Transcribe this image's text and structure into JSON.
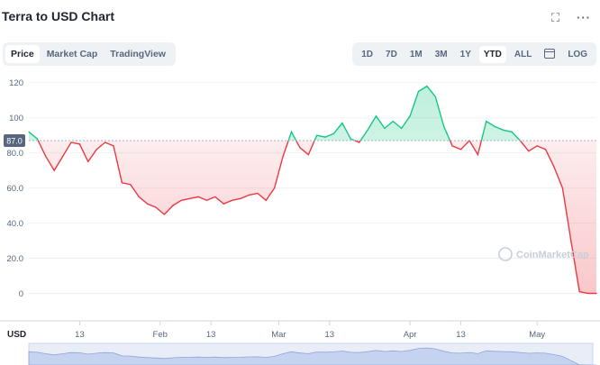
{
  "title": "Terra to USD Chart",
  "icons": {
    "expand": "expand-icon",
    "more": "more-icon",
    "calendar": "calendar-icon"
  },
  "tabs_left": [
    "Price",
    "Market Cap",
    "TradingView"
  ],
  "active_left": "Price",
  "tabs_right": [
    "1D",
    "7D",
    "1M",
    "3M",
    "1Y",
    "YTD",
    "ALL",
    "LOG"
  ],
  "active_right": "YTD",
  "watermark": "CoinMarketCap",
  "colors": {
    "up": "#16c784",
    "down": "#ea3943",
    "baseline": "#a6b0c3"
  },
  "chart_data": {
    "type": "area",
    "ylabel": "USD",
    "yticks": [
      "0",
      "20.0",
      "40.0",
      "60.0",
      "80.0",
      "100",
      "120"
    ],
    "ylim": [
      -10,
      125
    ],
    "baseline_value": "87.0",
    "baseline": 87.0,
    "xticks": [
      "13",
      "Feb",
      "13",
      "Mar",
      "13",
      "Apr",
      "13",
      "May"
    ],
    "xtick_dates": [
      "2022-01-13",
      "2022-02-01",
      "2022-02-13",
      "2022-03-01",
      "2022-03-13",
      "2022-04-01",
      "2022-04-13",
      "2022-05-01"
    ],
    "grid": true,
    "x": [
      "2022-01-01",
      "2022-01-03",
      "2022-01-05",
      "2022-01-07",
      "2022-01-09",
      "2022-01-11",
      "2022-01-13",
      "2022-01-15",
      "2022-01-17",
      "2022-01-19",
      "2022-01-21",
      "2022-01-23",
      "2022-01-25",
      "2022-01-27",
      "2022-01-29",
      "2022-01-31",
      "2022-02-02",
      "2022-02-04",
      "2022-02-06",
      "2022-02-08",
      "2022-02-10",
      "2022-02-12",
      "2022-02-14",
      "2022-02-16",
      "2022-02-18",
      "2022-02-20",
      "2022-02-22",
      "2022-02-24",
      "2022-02-26",
      "2022-02-28",
      "2022-03-02",
      "2022-03-04",
      "2022-03-06",
      "2022-03-08",
      "2022-03-10",
      "2022-03-12",
      "2022-03-14",
      "2022-03-16",
      "2022-03-18",
      "2022-03-20",
      "2022-03-22",
      "2022-03-24",
      "2022-03-26",
      "2022-03-28",
      "2022-03-30",
      "2022-04-01",
      "2022-04-03",
      "2022-04-05",
      "2022-04-07",
      "2022-04-09",
      "2022-04-11",
      "2022-04-13",
      "2022-04-15",
      "2022-04-17",
      "2022-04-19",
      "2022-04-21",
      "2022-04-23",
      "2022-04-25",
      "2022-04-27",
      "2022-04-29",
      "2022-05-01",
      "2022-05-03",
      "2022-05-05",
      "2022-05-07",
      "2022-05-09",
      "2022-05-11",
      "2022-05-13",
      "2022-05-15"
    ],
    "y": [
      92,
      88,
      78,
      70,
      78,
      86,
      85,
      75,
      82,
      86,
      84,
      63,
      62,
      55,
      51,
      49,
      45,
      50,
      53,
      54,
      55,
      53,
      55,
      51,
      53,
      54,
      56,
      57,
      53,
      60,
      78,
      92,
      83,
      79,
      90,
      89,
      91,
      97,
      88,
      86,
      93,
      101,
      94,
      98,
      94,
      101,
      115,
      118,
      112,
      95,
      84,
      82,
      87,
      79,
      98,
      95,
      93,
      92,
      87,
      81,
      84,
      82,
      72,
      60,
      30,
      1,
      0,
      0
    ]
  }
}
